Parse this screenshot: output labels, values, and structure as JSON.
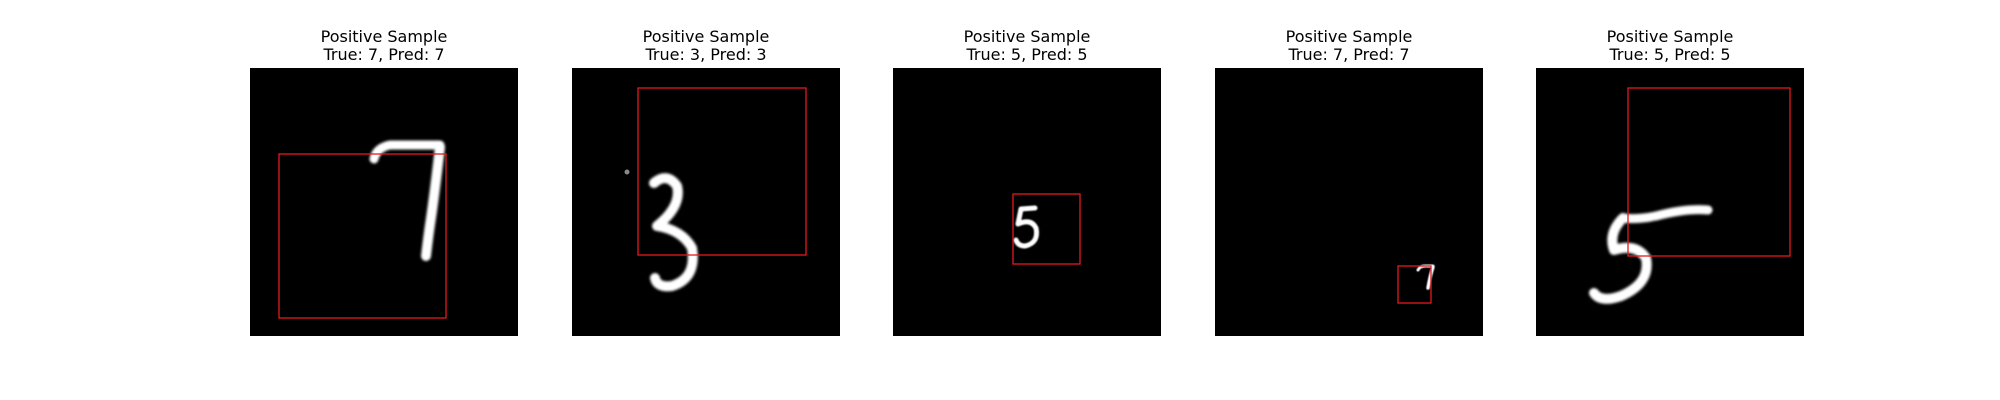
{
  "panels": [
    {
      "title": "Positive Sample",
      "subtitle": "True: 7, Pred: 7",
      "digit": "7",
      "box_color": "#e41a1c"
    },
    {
      "title": "Positive Sample",
      "subtitle": "True: 3, Pred: 3",
      "digit": "3",
      "box_color": "#e41a1c"
    },
    {
      "title": "Positive Sample",
      "subtitle": "True: 5, Pred: 5",
      "digit": "5",
      "box_color": "#e41a1c"
    },
    {
      "title": "Positive Sample",
      "subtitle": "True: 7, Pred: 7",
      "digit": "7",
      "box_color": "#e41a1c"
    },
    {
      "title": "Positive Sample",
      "subtitle": "True: 5, Pred: 5",
      "digit": "5",
      "box_color": "#e41a1c"
    }
  ]
}
